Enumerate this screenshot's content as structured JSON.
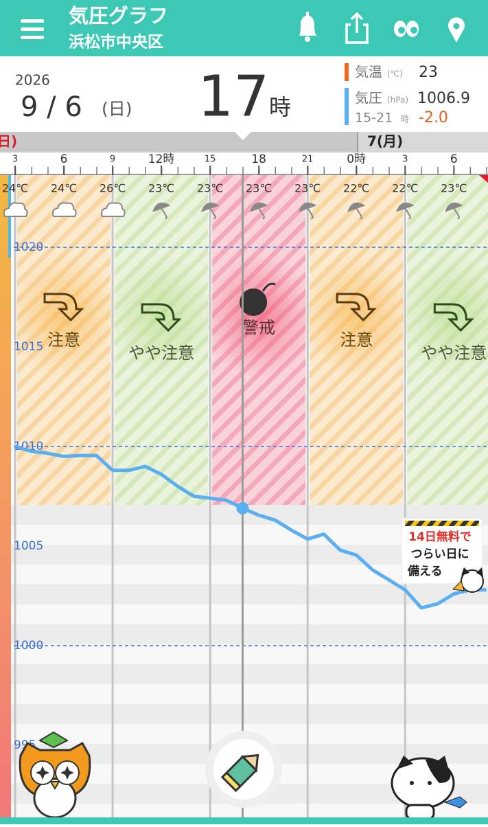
{
  "header": {
    "title": "気圧グラフ",
    "location": "浜松市中央区"
  },
  "date": {
    "year": "2026",
    "date": "9 / 6",
    "weekday": "(日)",
    "hour": "17",
    "hour_unit": "時"
  },
  "readout": {
    "temp_label": "気温",
    "temp_unit": "(℃)",
    "temp": "23",
    "pressure_label": "気圧",
    "pressure_unit": "(hPa)",
    "pressure": "1006.9",
    "range": "15-21",
    "range_unit": "時",
    "change": "-2.0"
  },
  "timeline": {
    "prev_day": "日)",
    "next_day": "7(月)"
  },
  "weather": [
    {
      "temp": "24℃",
      "icon": "cloud"
    },
    {
      "temp": "24℃",
      "icon": "cloud"
    },
    {
      "temp": "26℃",
      "icon": "cloud"
    },
    {
      "temp": "23℃",
      "icon": "umbrella"
    },
    {
      "temp": "23℃",
      "icon": "umbrella"
    },
    {
      "temp": "23℃",
      "icon": "umbrella"
    },
    {
      "temp": "23℃",
      "icon": "umbrella"
    },
    {
      "temp": "22℃",
      "icon": "umbrella"
    },
    {
      "temp": "22℃",
      "icon": "umbrella"
    },
    {
      "temp": "23℃",
      "icon": "umbrella"
    }
  ],
  "levels": [
    {
      "label": "注意",
      "level": "caution"
    },
    {
      "label": "やや注意",
      "level": "mild"
    },
    {
      "label": "警戒",
      "level": "alert"
    },
    {
      "label": "注意",
      "level": "caution"
    },
    {
      "label": "やや注意",
      "level": "mild"
    }
  ],
  "promo": {
    "lines": [
      "14日無料で",
      "つらい日に",
      "備える"
    ]
  },
  "chart_data": {
    "type": "line",
    "color": "#5aaef2",
    "x": [
      3,
      4,
      5,
      6,
      7,
      8,
      9,
      10,
      11,
      12,
      13,
      14,
      15,
      16,
      17,
      18,
      19,
      20,
      21,
      22,
      23,
      24,
      25,
      26,
      27,
      28,
      29,
      30,
      31,
      32
    ],
    "values": [
      1010.0,
      1009.76,
      1009.66,
      1009.5,
      1009.55,
      1009.55,
      1008.8,
      1008.8,
      1009.0,
      1008.6,
      1008.0,
      1007.5,
      1007.4,
      1007.3,
      1006.9,
      1006.55,
      1006.3,
      1005.8,
      1005.35,
      1005.6,
      1004.8,
      1004.55,
      1003.8,
      1003.3,
      1002.8,
      1001.9,
      1002.1,
      1002.6,
      1002.8,
      1002.8
    ],
    "xlim": [
      2.07,
      32.1
    ],
    "xticks": [
      3,
      6,
      9,
      {
        "value": 12,
        "label": "12時"
      },
      15,
      18,
      21,
      {
        "value": 24,
        "label": "0時"
      },
      {
        "value": 27,
        "label": "3"
      },
      {
        "value": 30,
        "label": "6"
      }
    ],
    "ylim": [
      991.5,
      1021
    ],
    "yticks": [
      995,
      1000,
      1005,
      1010,
      1015,
      1020
    ]
  }
}
